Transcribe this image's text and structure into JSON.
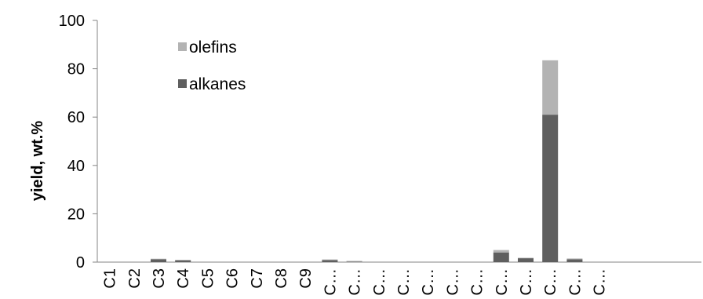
{
  "chart_data": {
    "type": "bar",
    "stacked": true,
    "title": "",
    "xlabel": "",
    "ylabel": "yield, wt.%",
    "ylim": [
      0,
      100
    ],
    "yticks": [
      0,
      20,
      40,
      60,
      80,
      100
    ],
    "grid": false,
    "legend_position": "top-left",
    "categories": [
      "C1",
      "C2",
      "C3",
      "C4",
      "C5",
      "C6",
      "C7",
      "C8",
      "C9",
      "C…",
      "C…",
      "C…",
      "C…",
      "C…",
      "C…",
      "C…",
      "C…",
      "C…",
      "C…",
      "C…",
      "C…"
    ],
    "series": [
      {
        "name": "alkanes",
        "color": "#5f5f5f",
        "values": [
          0,
          0,
          1.2,
          0.8,
          0,
          0,
          0,
          0,
          0,
          0.8,
          0.2,
          0,
          0,
          0,
          0,
          0,
          4.0,
          1.6,
          61.0,
          1.2,
          0
        ]
      },
      {
        "name": "olefins",
        "color": "#b3b3b3",
        "values": [
          0,
          0,
          0.2,
          0.1,
          0,
          0,
          0,
          0,
          0,
          0.3,
          0.3,
          0,
          0,
          0,
          0,
          0,
          1.0,
          0.2,
          22.5,
          0.3,
          0
        ]
      }
    ],
    "legend": [
      {
        "label": "olefins",
        "color": "#b3b3b3"
      },
      {
        "label": "alkanes",
        "color": "#5f5f5f"
      }
    ]
  }
}
